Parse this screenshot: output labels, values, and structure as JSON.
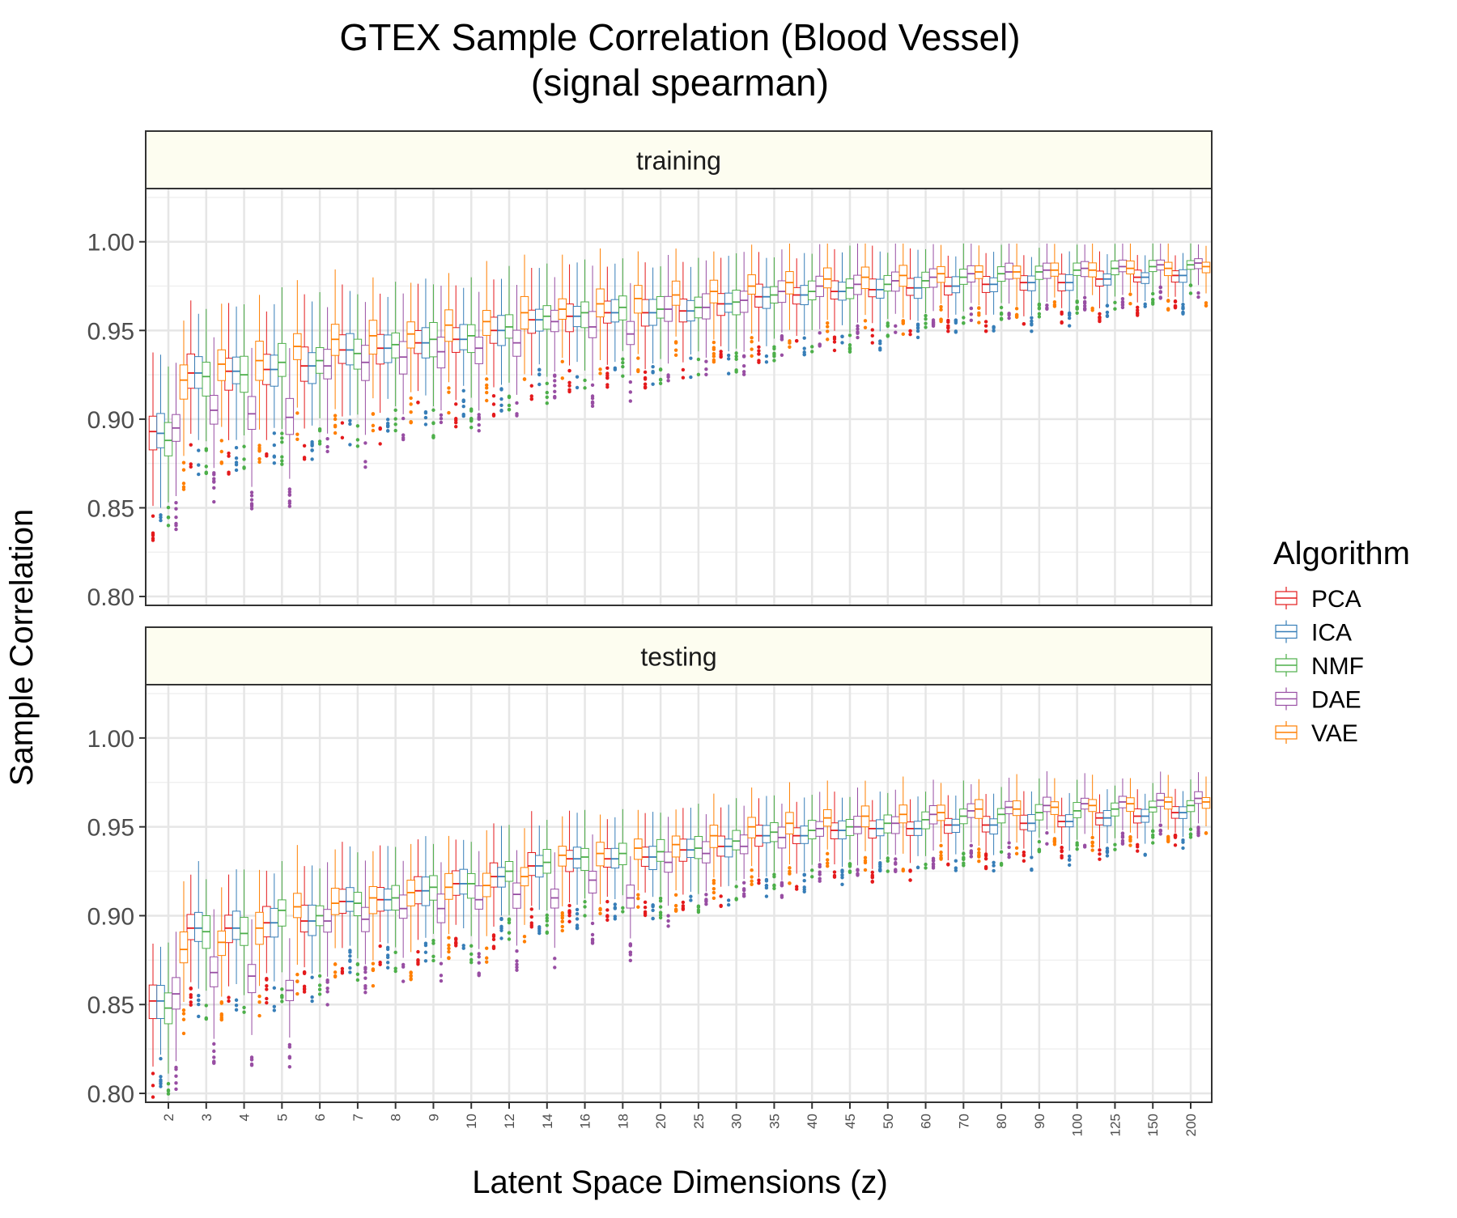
{
  "chart_data": {
    "type": "boxplot",
    "title": "GTEX Sample Correlation (Blood Vessel)",
    "subtitle": "(signal spearman)",
    "xlabel": "Latent Space Dimensions (z)",
    "ylabel": "Sample Correlation",
    "ylim": [
      0.795,
      1.03
    ],
    "yticks": [
      "0.80",
      "0.85",
      "0.90",
      "0.95",
      "1.00"
    ],
    "grid": true,
    "legend_title": "Algorithm",
    "legend_position": "right",
    "categories": [
      "2",
      "3",
      "4",
      "5",
      "6",
      "7",
      "8",
      "9",
      "10",
      "12",
      "14",
      "16",
      "18",
      "20",
      "25",
      "30",
      "35",
      "40",
      "45",
      "50",
      "60",
      "70",
      "80",
      "90",
      "100",
      "125",
      "150",
      "200"
    ],
    "series": [
      {
        "name": "PCA",
        "color": "#e41a1c"
      },
      {
        "name": "ICA",
        "color": "#377eb8"
      },
      {
        "name": "NMF",
        "color": "#4daf4a"
      },
      {
        "name": "DAE",
        "color": "#984ea3"
      },
      {
        "name": "VAE",
        "color": "#ff7f00"
      }
    ],
    "panels": [
      {
        "label": "training",
        "medians": {
          "PCA": [
            0.893,
            0.926,
            0.927,
            0.928,
            0.93,
            0.939,
            0.94,
            0.943,
            0.945,
            0.95,
            0.956,
            0.958,
            0.96,
            0.96,
            0.961,
            0.965,
            0.969,
            0.97,
            0.972,
            0.973,
            0.974,
            0.975,
            0.976,
            0.977,
            0.977,
            0.979,
            0.98,
            0.981
          ],
          "ICA": [
            0.892,
            0.926,
            0.927,
            0.928,
            0.93,
            0.939,
            0.94,
            0.943,
            0.945,
            0.95,
            0.956,
            0.958,
            0.96,
            0.96,
            0.961,
            0.965,
            0.969,
            0.97,
            0.972,
            0.973,
            0.974,
            0.975,
            0.976,
            0.977,
            0.977,
            0.979,
            0.98,
            0.981
          ],
          "NMF": [
            0.888,
            0.924,
            0.925,
            0.932,
            0.933,
            0.937,
            0.942,
            0.945,
            0.947,
            0.952,
            0.958,
            0.96,
            0.963,
            0.962,
            0.963,
            0.966,
            0.97,
            0.972,
            0.974,
            0.976,
            0.978,
            0.98,
            0.982,
            0.983,
            0.984,
            0.985,
            0.986,
            0.987
          ],
          "DAE": [
            0.895,
            0.905,
            0.903,
            0.901,
            0.93,
            0.932,
            0.935,
            0.938,
            0.94,
            0.943,
            0.955,
            0.952,
            0.948,
            0.962,
            0.963,
            0.967,
            0.972,
            0.975,
            0.976,
            0.978,
            0.98,
            0.982,
            0.983,
            0.984,
            0.985,
            0.986,
            0.987,
            0.988
          ],
          "VAE": [
            0.922,
            0.931,
            0.933,
            0.941,
            0.945,
            0.947,
            0.948,
            0.953,
            0.955,
            0.96,
            0.962,
            0.965,
            0.968,
            0.97,
            0.972,
            0.975,
            0.977,
            0.979,
            0.98,
            0.981,
            0.982,
            0.983,
            0.983,
            0.984,
            0.984,
            0.985,
            0.985,
            0.986
          ]
        }
      },
      {
        "label": "testing",
        "medians": {
          "PCA": [
            0.852,
            0.893,
            0.893,
            0.896,
            0.897,
            0.908,
            0.909,
            0.914,
            0.918,
            0.922,
            0.928,
            0.932,
            0.932,
            0.933,
            0.937,
            0.939,
            0.945,
            0.945,
            0.948,
            0.949,
            0.949,
            0.951,
            0.951,
            0.952,
            0.953,
            0.955,
            0.956,
            0.958
          ],
          "ICA": [
            0.852,
            0.893,
            0.893,
            0.896,
            0.897,
            0.908,
            0.909,
            0.914,
            0.918,
            0.922,
            0.928,
            0.932,
            0.932,
            0.933,
            0.937,
            0.939,
            0.945,
            0.945,
            0.948,
            0.949,
            0.949,
            0.951,
            0.951,
            0.952,
            0.953,
            0.955,
            0.956,
            0.958
          ],
          "NMF": [
            0.848,
            0.891,
            0.89,
            0.903,
            0.9,
            0.907,
            0.91,
            0.916,
            0.918,
            0.925,
            0.93,
            0.933,
            0.935,
            0.936,
            0.938,
            0.942,
            0.947,
            0.948,
            0.95,
            0.952,
            0.954,
            0.956,
            0.957,
            0.958,
            0.959,
            0.96,
            0.961,
            0.962
          ],
          "DAE": [
            0.856,
            0.868,
            0.866,
            0.858,
            0.897,
            0.898,
            0.904,
            0.904,
            0.909,
            0.912,
            0.91,
            0.92,
            0.91,
            0.93,
            0.935,
            0.939,
            0.944,
            0.949,
            0.95,
            0.952,
            0.957,
            0.959,
            0.961,
            0.962,
            0.963,
            0.964,
            0.965,
            0.966
          ],
          "VAE": [
            0.881,
            0.885,
            0.893,
            0.905,
            0.907,
            0.91,
            0.913,
            0.916,
            0.917,
            0.922,
            0.934,
            0.935,
            0.938,
            0.94,
            0.945,
            0.95,
            0.952,
            0.955,
            0.956,
            0.957,
            0.958,
            0.96,
            0.96,
            0.961,
            0.962,
            0.963,
            0.964,
            0.964
          ]
        }
      }
    ]
  }
}
